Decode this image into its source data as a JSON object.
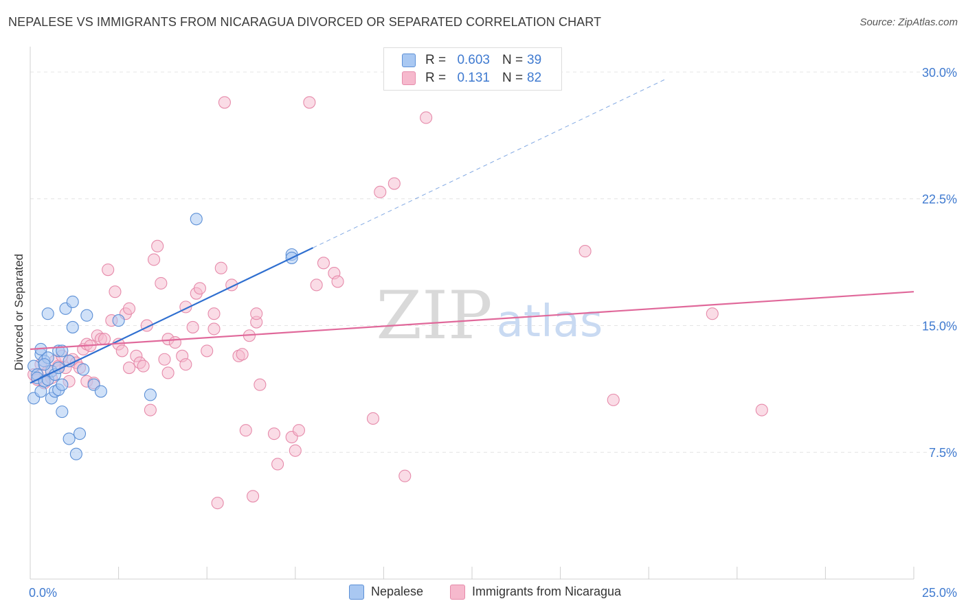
{
  "title": "NEPALESE VS IMMIGRANTS FROM NICARAGUA DIVORCED OR SEPARATED CORRELATION CHART",
  "source": "Source: ZipAtlas.com",
  "watermark": {
    "zip": "ZIP",
    "atlas": "atlas"
  },
  "colors": {
    "blue_fill": "#a9c8f2",
    "blue_stroke": "#5b8fd6",
    "blue_line": "#2f6fd0",
    "pink_fill": "#f6b9cd",
    "pink_stroke": "#e68aaa",
    "pink_line": "#e0689a",
    "axis_label": "#3f7ad0",
    "grid": "#e4e4e4"
  },
  "legend_top": {
    "rows": [
      {
        "r_label": "R =",
        "r_value": "0.603",
        "n_label": "N =",
        "n_value": "39",
        "color": "#a9c8f2",
        "border": "#5b8fd6"
      },
      {
        "r_label": "R =",
        "r_value": "0.131",
        "n_label": "N =",
        "n_value": "82",
        "color": "#f6b9cd",
        "border": "#e68aaa"
      }
    ]
  },
  "legend_bottom": [
    {
      "label": "Nepalese",
      "color": "#a9c8f2",
      "border": "#5b8fd6"
    },
    {
      "label": "Immigrants from Nicaragua",
      "color": "#f6b9cd",
      "border": "#e68aaa"
    }
  ],
  "chart_data": {
    "type": "scatter",
    "title": "NEPALESE VS IMMIGRANTS FROM NICARAGUA DIVORCED OR SEPARATED CORRELATION CHART",
    "xlabel": "",
    "ylabel": "Divorced or Separated",
    "xlim": [
      0,
      25
    ],
    "ylim": [
      0,
      31.5
    ],
    "x_tick_labels": [
      "0.0%",
      "25.0%"
    ],
    "y_ticks": [
      7.5,
      15.0,
      22.5,
      30.0
    ],
    "y_tick_labels": [
      "7.5%",
      "15.0%",
      "22.5%",
      "30.0%"
    ],
    "grid": true,
    "legend_position": "top-center",
    "series": [
      {
        "name": "Nepalese",
        "R": 0.603,
        "N": 39,
        "trend": {
          "x0": 0.0,
          "y0": 11.6,
          "x1": 8.0,
          "y1": 19.6,
          "dashed_to_x": 18.0,
          "dashed_to_y": 29.6
        },
        "points": [
          [
            0.1,
            10.7
          ],
          [
            0.1,
            12.6
          ],
          [
            0.2,
            12.1
          ],
          [
            0.2,
            11.9
          ],
          [
            0.3,
            13.3
          ],
          [
            0.3,
            13.6
          ],
          [
            0.3,
            11.1
          ],
          [
            0.4,
            11.7
          ],
          [
            0.4,
            12.9
          ],
          [
            0.5,
            13.1
          ],
          [
            0.5,
            15.7
          ],
          [
            0.5,
            11.8
          ],
          [
            0.6,
            10.7
          ],
          [
            0.6,
            12.3
          ],
          [
            0.7,
            11.1
          ],
          [
            0.7,
            12.1
          ],
          [
            0.8,
            11.2
          ],
          [
            0.8,
            13.5
          ],
          [
            0.8,
            12.5
          ],
          [
            0.9,
            11.5
          ],
          [
            0.9,
            13.5
          ],
          [
            0.9,
            9.9
          ],
          [
            1.0,
            16.0
          ],
          [
            1.1,
            12.9
          ],
          [
            1.1,
            8.3
          ],
          [
            1.2,
            16.4
          ],
          [
            1.2,
            14.9
          ],
          [
            1.3,
            7.4
          ],
          [
            1.4,
            8.6
          ],
          [
            1.5,
            12.4
          ],
          [
            1.6,
            15.6
          ],
          [
            1.8,
            11.5
          ],
          [
            2.0,
            11.1
          ],
          [
            2.5,
            15.3
          ],
          [
            3.4,
            10.9
          ],
          [
            4.7,
            21.3
          ],
          [
            7.4,
            19.2
          ],
          [
            7.4,
            19.0
          ],
          [
            0.4,
            12.7
          ]
        ]
      },
      {
        "name": "Immigrants from Nicaragua",
        "R": 0.131,
        "N": 82,
        "trend": {
          "x0": 0.0,
          "y0": 13.6,
          "x1": 25.0,
          "y1": 17.0
        },
        "points": [
          [
            0.1,
            12.1
          ],
          [
            0.2,
            11.8
          ],
          [
            0.3,
            12.7
          ],
          [
            0.4,
            11.6
          ],
          [
            0.5,
            12.3
          ],
          [
            0.6,
            11.9
          ],
          [
            0.7,
            12.9
          ],
          [
            0.8,
            12.6
          ],
          [
            0.9,
            13.2
          ],
          [
            1.0,
            12.5
          ],
          [
            1.1,
            11.7
          ],
          [
            1.2,
            13.0
          ],
          [
            1.3,
            12.8
          ],
          [
            1.4,
            12.5
          ],
          [
            1.5,
            13.6
          ],
          [
            1.6,
            13.9
          ],
          [
            1.6,
            11.7
          ],
          [
            1.7,
            13.8
          ],
          [
            1.8,
            11.6
          ],
          [
            1.9,
            14.4
          ],
          [
            2.0,
            14.2
          ],
          [
            2.1,
            14.2
          ],
          [
            2.2,
            18.3
          ],
          [
            2.3,
            15.3
          ],
          [
            2.4,
            17.0
          ],
          [
            2.5,
            13.9
          ],
          [
            2.6,
            13.5
          ],
          [
            2.7,
            15.7
          ],
          [
            2.8,
            16.0
          ],
          [
            2.8,
            12.5
          ],
          [
            3.0,
            13.2
          ],
          [
            3.1,
            12.8
          ],
          [
            3.2,
            12.6
          ],
          [
            3.3,
            15.0
          ],
          [
            3.4,
            10.0
          ],
          [
            3.5,
            18.9
          ],
          [
            3.6,
            19.7
          ],
          [
            3.7,
            17.5
          ],
          [
            3.8,
            13.0
          ],
          [
            3.9,
            12.2
          ],
          [
            3.9,
            14.2
          ],
          [
            4.1,
            14.0
          ],
          [
            4.3,
            13.2
          ],
          [
            4.4,
            16.1
          ],
          [
            4.4,
            12.7
          ],
          [
            4.6,
            14.9
          ],
          [
            4.7,
            16.9
          ],
          [
            4.8,
            17.2
          ],
          [
            5.0,
            13.5
          ],
          [
            5.2,
            14.8
          ],
          [
            5.2,
            15.7
          ],
          [
            5.4,
            18.4
          ],
          [
            5.5,
            28.2
          ],
          [
            5.7,
            17.4
          ],
          [
            5.9,
            13.2
          ],
          [
            6.0,
            13.3
          ],
          [
            6.1,
            8.8
          ],
          [
            6.2,
            14.4
          ],
          [
            6.4,
            15.2
          ],
          [
            6.4,
            15.7
          ],
          [
            6.5,
            11.5
          ],
          [
            6.3,
            4.9
          ],
          [
            6.9,
            8.6
          ],
          [
            7.0,
            6.8
          ],
          [
            7.4,
            8.4
          ],
          [
            7.5,
            7.6
          ],
          [
            7.6,
            8.8
          ],
          [
            7.9,
            28.2
          ],
          [
            8.1,
            17.4
          ],
          [
            8.3,
            18.7
          ],
          [
            8.6,
            18.1
          ],
          [
            8.7,
            17.6
          ],
          [
            9.7,
            9.5
          ],
          [
            9.9,
            22.9
          ],
          [
            10.3,
            23.4
          ],
          [
            10.6,
            6.1
          ],
          [
            11.2,
            27.3
          ],
          [
            15.7,
            19.4
          ],
          [
            16.5,
            10.6
          ],
          [
            19.3,
            15.7
          ],
          [
            20.7,
            10.0
          ],
          [
            5.3,
            4.5
          ]
        ]
      }
    ]
  }
}
